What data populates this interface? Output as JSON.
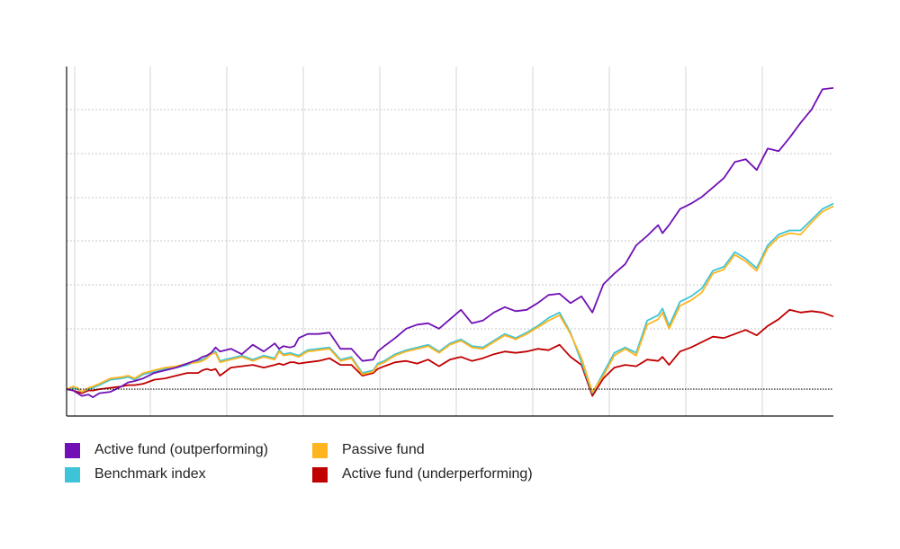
{
  "chart_data": {
    "type": "line",
    "title": "",
    "xlabel": "",
    "ylabel": "",
    "grid": true,
    "legend_position": "bottom-left",
    "baseline": 100,
    "x": [
      0,
      3,
      5,
      7,
      10,
      12,
      15,
      20,
      25,
      28,
      31,
      35,
      40,
      45,
      50,
      55,
      60,
      62,
      64,
      66,
      68,
      70,
      75,
      80,
      85,
      90,
      95,
      97,
      99,
      102,
      104,
      106,
      110,
      115,
      120,
      125,
      130,
      135,
      140,
      142,
      145,
      150,
      155,
      160,
      165,
      170,
      175,
      180,
      185,
      190,
      195,
      200,
      205,
      210,
      215,
      220,
      225,
      230,
      235,
      240,
      245,
      250,
      255,
      260,
      265,
      270,
      272,
      275,
      280,
      285,
      290,
      295,
      300,
      305,
      310,
      315,
      320,
      325,
      330,
      335,
      340,
      345,
      350
    ],
    "series": [
      {
        "name": "Active fund (outperforming)",
        "color": "#7010B5",
        "values": [
          100,
          99,
          97,
          95,
          96,
          94,
          97,
          98,
          102,
          105,
          106,
          108,
          112,
          114,
          116,
          119,
          122,
          124,
          125,
          127,
          131,
          128,
          130,
          126,
          133,
          128,
          134,
          130,
          132,
          131,
          132,
          138,
          141,
          141,
          142,
          130,
          130,
          121,
          122,
          128,
          132,
          138,
          145,
          148,
          149,
          145,
          152,
          159,
          149,
          151,
          157,
          161,
          158,
          159,
          164,
          170,
          171,
          164,
          169,
          157,
          178,
          186,
          193,
          207,
          214,
          222,
          216,
          222,
          234,
          238,
          243,
          250,
          257,
          269,
          271,
          263,
          279,
          277,
          287,
          298,
          308,
          323,
          324
        ]
      },
      {
        "name": "Passive fund",
        "color": "#FFB51F",
        "values": [
          100,
          102,
          101,
          98,
          101,
          102,
          104,
          108,
          109,
          110,
          108,
          112,
          114,
          116,
          117,
          119,
          120,
          121,
          123,
          126,
          127,
          120,
          122,
          124,
          121,
          124,
          122,
          128,
          125,
          126,
          125,
          124,
          128,
          129,
          130,
          121,
          123,
          111,
          113,
          118,
          120,
          125,
          128,
          130,
          132,
          127,
          133,
          136,
          131,
          130,
          135,
          140,
          137,
          141,
          146,
          151,
          155,
          141,
          123,
          98,
          110,
          125,
          130,
          125,
          148,
          152,
          157,
          145,
          162,
          166,
          172,
          186,
          189,
          200,
          195,
          188,
          205,
          213,
          216,
          215,
          224,
          232,
          236
        ]
      },
      {
        "name": "Benchmark index",
        "color": "#3EC4D8",
        "values": [
          100,
          101,
          100,
          98,
          100,
          101,
          103,
          107,
          108,
          109,
          107,
          111,
          113,
          115,
          116,
          118,
          121,
          122,
          124,
          127,
          128,
          121,
          123,
          125,
          122,
          125,
          123,
          129,
          126,
          127,
          126,
          125,
          129,
          130,
          131,
          122,
          124,
          112,
          114,
          119,
          121,
          126,
          129,
          131,
          133,
          128,
          134,
          137,
          132,
          131,
          136,
          141,
          138,
          142,
          147,
          153,
          157,
          142,
          120,
          97,
          112,
          127,
          131,
          127,
          151,
          155,
          160,
          147,
          165,
          169,
          175,
          188,
          191,
          202,
          197,
          190,
          207,
          215,
          218,
          218,
          226,
          234,
          238
        ]
      },
      {
        "name": "Active fund (underperforming)",
        "color": "#C00000",
        "values": [
          100,
          99,
          98,
          97,
          99,
          99,
          100,
          101,
          102,
          103,
          103,
          104,
          107,
          108,
          110,
          112,
          112,
          114,
          115,
          114,
          115,
          110,
          116,
          117,
          118,
          116,
          118,
          119,
          118,
          120,
          120,
          119,
          120,
          121,
          123,
          118,
          118,
          110,
          112,
          115,
          117,
          120,
          121,
          119,
          122,
          117,
          122,
          124,
          121,
          123,
          126,
          128,
          127,
          128,
          130,
          129,
          133,
          124,
          118,
          95,
          108,
          116,
          118,
          117,
          122,
          121,
          124,
          118,
          128,
          131,
          135,
          139,
          138,
          141,
          144,
          140,
          147,
          152,
          159,
          157,
          158,
          157,
          154
        ]
      }
    ]
  },
  "legend": {
    "items": [
      {
        "label": "Active fund (outperforming)",
        "color": "#7010B5"
      },
      {
        "label": "Benchmark index",
        "color": "#3EC4D8"
      },
      {
        "label": "Passive fund",
        "color": "#FFB51F"
      },
      {
        "label": "Active fund (underperforming)",
        "color": "#C00000"
      }
    ]
  }
}
